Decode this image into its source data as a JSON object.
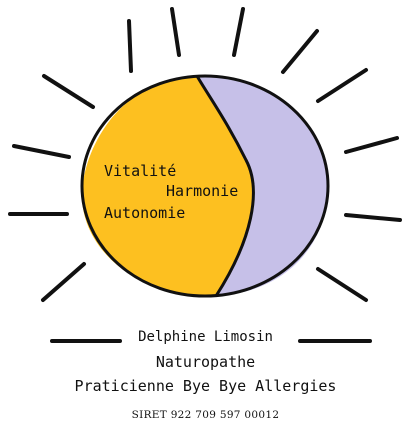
{
  "logo": {
    "words": {
      "vitality": "Vitalité",
      "harmony": "Harmonie",
      "autonomy": "Autonomie"
    },
    "colors": {
      "sun_left": "#fdc020",
      "sun_right": "#c6c0e8",
      "outline": "#111111",
      "rays": "#111111"
    }
  },
  "caption": {
    "name": "Delphine Limosin",
    "role": "Naturopathe",
    "practice": "Praticienne Bye Bye Allergies",
    "siret": "SIRET 922 709 597 00012"
  }
}
